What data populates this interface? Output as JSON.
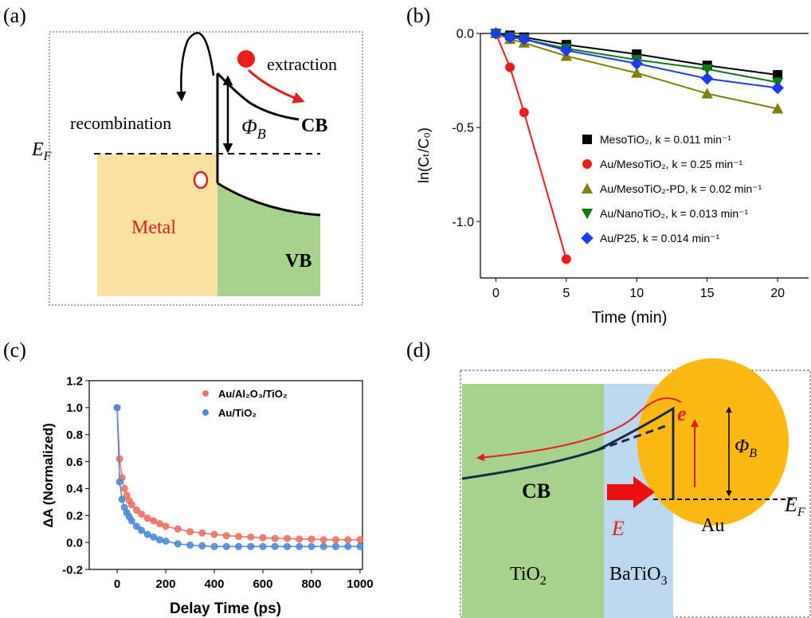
{
  "panels": [
    "(a)",
    "(b)",
    "(c)",
    "(d)"
  ],
  "diagram_a": {
    "extraction": "extraction",
    "recombination": "recombination",
    "barrier": {
      "main": "Φ",
      "sub": "B"
    },
    "cb": "CB",
    "fermi": {
      "main": "E",
      "sub": "F"
    },
    "metal": "Metal",
    "vb": "VB"
  },
  "chart_data": [
    {
      "type": "line",
      "xlabel": "Time (min)",
      "ylabel": "ln(Cₜ/C₀)",
      "xlim": [
        -1.1,
        22.2
      ],
      "ylim": [
        -1.3,
        0
      ],
      "xticks": [
        0,
        5,
        10,
        15,
        20
      ],
      "yticks": [
        {
          "value": 0,
          "label": "0.0"
        },
        -0.5,
        {
          "value": -1,
          "label": "-1.0"
        }
      ],
      "series": [
        {
          "name": "MesoTiO₂, k = 0.011 min⁻¹",
          "color": "#000000",
          "marker": "square",
          "x": [
            0,
            1,
            2,
            5,
            10,
            15,
            20
          ],
          "values": [
            0,
            -0.01,
            -0.02,
            -0.06,
            -0.11,
            -0.17,
            -0.22
          ]
        },
        {
          "name": "Au/MesoTiO₂, k = 0.25 min⁻¹",
          "color": "#ee1c1c",
          "marker": "circle",
          "x": [
            0,
            1,
            2,
            5
          ],
          "values": [
            0,
            -0.18,
            -0.42,
            -1.2
          ]
        },
        {
          "name": "Au/MesoTiO₂-PD, k = 0.02 min⁻¹",
          "color": "#808000",
          "marker": "triangle-up",
          "x": [
            0,
            1,
            2,
            5,
            10,
            15,
            20
          ],
          "values": [
            0,
            -0.03,
            -0.05,
            -0.12,
            -0.21,
            -0.32,
            -0.4
          ]
        },
        {
          "name": "Au/NanoTiO₂, k = 0.013 min⁻¹",
          "color": "#0a7a0a",
          "marker": "triangle-down",
          "x": [
            0,
            1,
            2,
            5,
            10,
            15,
            20
          ],
          "values": [
            0,
            -0.02,
            -0.03,
            -0.08,
            -0.14,
            -0.19,
            -0.26
          ]
        },
        {
          "name": "Au/P25, k = 0.014 min⁻¹",
          "color": "#1c3cf0",
          "marker": "diamond",
          "x": [
            0,
            1,
            2,
            5,
            10,
            15,
            20
          ],
          "values": [
            0,
            -0.02,
            -0.03,
            -0.09,
            -0.16,
            -0.24,
            -0.29
          ]
        }
      ]
    },
    {
      "type": "scatter",
      "xlabel": "Delay Time (ps)",
      "ylabel": "ΔA (Normalized)",
      "xlim": [
        -115,
        1010
      ],
      "ylim": [
        -0.2,
        1.2
      ],
      "xticks": [
        0,
        200,
        400,
        600,
        800,
        1000
      ],
      "yticks": [
        -0.2,
        {
          "value": 0,
          "label": "0.0"
        },
        0.2,
        0.4,
        0.6,
        0.8,
        {
          "value": 1,
          "label": "1.0"
        },
        1.2
      ],
      "series": [
        {
          "name": "Au/Al₂O₃/TiO₂",
          "color": "#f07060",
          "marker": "circle",
          "x": [
            0,
            10,
            20,
            30,
            40,
            50,
            60,
            80,
            100,
            125,
            150,
            175,
            200,
            250,
            300,
            350,
            400,
            450,
            500,
            550,
            600,
            650,
            700,
            750,
            800,
            850,
            900,
            950,
            1000
          ],
          "values": [
            1.0,
            0.62,
            0.48,
            0.4,
            0.35,
            0.31,
            0.28,
            0.24,
            0.21,
            0.18,
            0.16,
            0.14,
            0.12,
            0.1,
            0.08,
            0.07,
            0.06,
            0.05,
            0.045,
            0.04,
            0.035,
            0.03,
            0.03,
            0.025,
            0.025,
            0.02,
            0.02,
            0.02,
            0.02
          ]
        },
        {
          "name": "Au/TiO₂",
          "color": "#4a8ad8",
          "marker": "circle",
          "x": [
            0,
            10,
            20,
            30,
            40,
            50,
            60,
            80,
            100,
            125,
            150,
            175,
            200,
            250,
            300,
            350,
            400,
            450,
            500,
            550,
            600,
            650,
            700,
            750,
            800,
            850,
            900,
            950,
            1000
          ],
          "values": [
            1.0,
            0.45,
            0.32,
            0.26,
            0.22,
            0.19,
            0.16,
            0.12,
            0.09,
            0.06,
            0.04,
            0.02,
            0.01,
            -0.01,
            -0.02,
            -0.025,
            -0.03,
            -0.03,
            -0.03,
            -0.03,
            -0.03,
            -0.03,
            -0.03,
            -0.03,
            -0.03,
            -0.03,
            -0.03,
            -0.03,
            -0.03
          ]
        }
      ]
    }
  ],
  "diagram_d": {
    "electron": "e",
    "barrier": {
      "main": "Φ",
      "sub": "B"
    },
    "cb": "CB",
    "field": "E",
    "au": "Au",
    "fermi": {
      "main": "E",
      "sub": "F"
    },
    "tio2": {
      "main": "TiO",
      "sub": "2"
    },
    "batio3": {
      "main": "BaTiO",
      "sub": "3"
    }
  }
}
